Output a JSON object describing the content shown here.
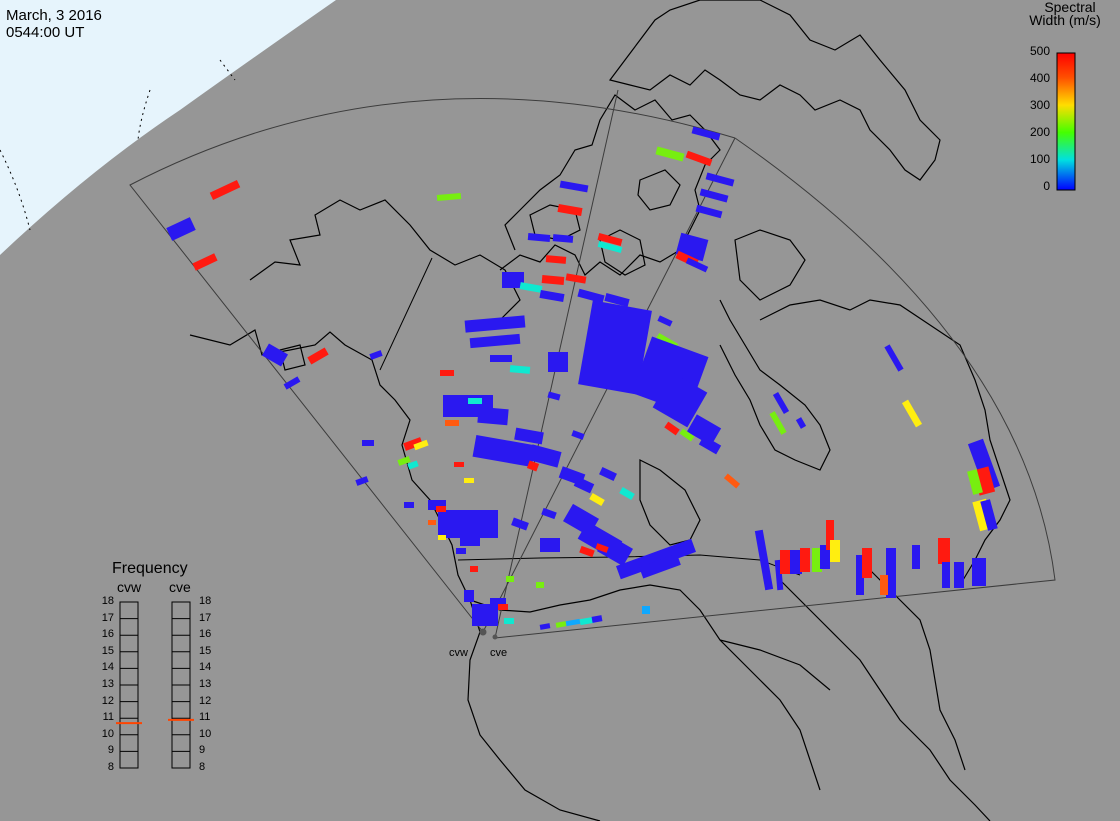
{
  "header": {
    "date": "March, 3 2016",
    "time": "0544:00 UT"
  },
  "colorbar": {
    "title_line1": "Spectral",
    "title_line2": "Width (m/s)",
    "ticks": [
      "500",
      "400",
      "300",
      "200",
      "100",
      "0"
    ],
    "gradient": [
      "#ff0000",
      "#ff6600",
      "#ffcc00",
      "#66ff00",
      "#00ffcc",
      "#0000ff"
    ]
  },
  "frequency": {
    "title": "Frequency",
    "radars": [
      {
        "name": "cvw",
        "marker": 10.7
      },
      {
        "name": "cve",
        "marker": 10.9
      }
    ],
    "levels": [
      "18",
      "17",
      "16",
      "15",
      "14",
      "13",
      "12",
      "11",
      "10",
      "9",
      "8"
    ],
    "marker_color": "#ff4400"
  },
  "sites": {
    "west": "cvw",
    "east": "cve"
  },
  "colors": {
    "ocean": "#969696",
    "daylight": "#e6f4fc",
    "coast": "#000000",
    "fov": "#404040",
    "low": "#2a18f0",
    "red": "#ff1a10",
    "orange": "#ff5a10",
    "yellow": "#ffee10",
    "green": "#77ee10",
    "cyan": "#10e8d0",
    "sky": "#10a8ff"
  }
}
